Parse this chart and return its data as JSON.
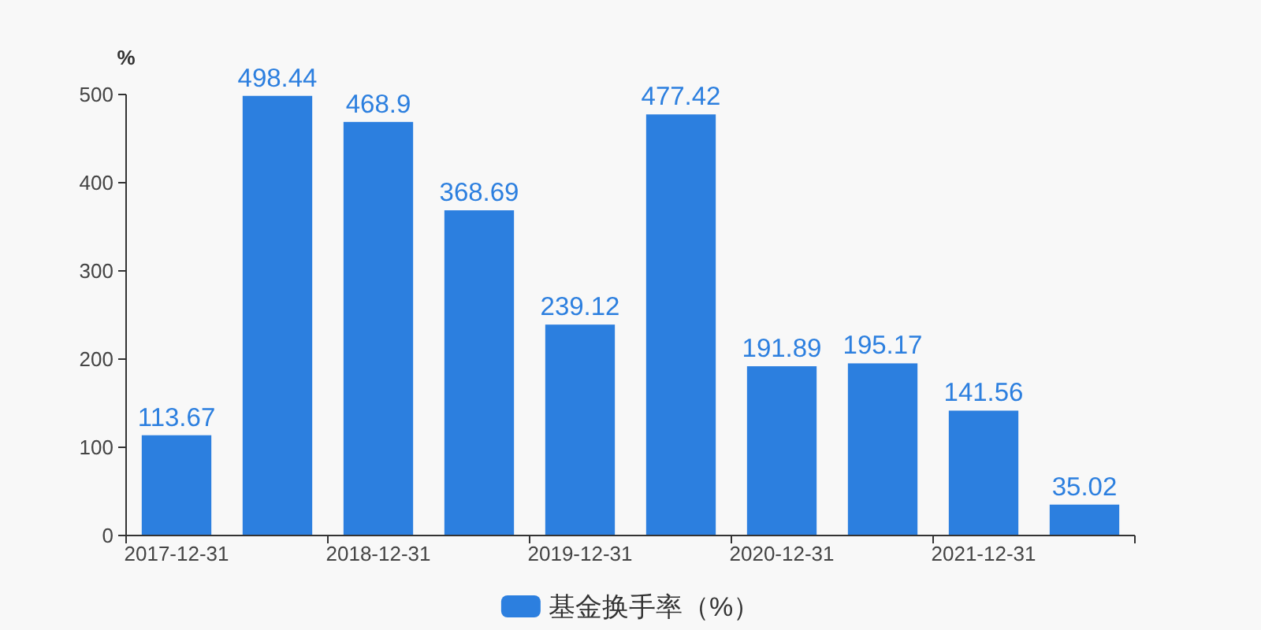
{
  "chart_data": {
    "type": "bar",
    "ylabel": "%",
    "categories": [
      "2017-12-31",
      null,
      "2018-12-31",
      null,
      "2019-12-31",
      null,
      "2020-12-31",
      null,
      "2021-12-31",
      null
    ],
    "series": [
      {
        "name": "基金换手率（%）",
        "color": "#2c7fdf",
        "values": [
          113.67,
          498.44,
          468.9,
          368.69,
          239.12,
          477.42,
          191.89,
          195.17,
          141.56,
          35.02
        ]
      }
    ],
    "ylim": [
      0,
      500
    ],
    "yticks": [
      0,
      100,
      200,
      300,
      400,
      500
    ],
    "data_labels": true,
    "legend": "bottom"
  }
}
